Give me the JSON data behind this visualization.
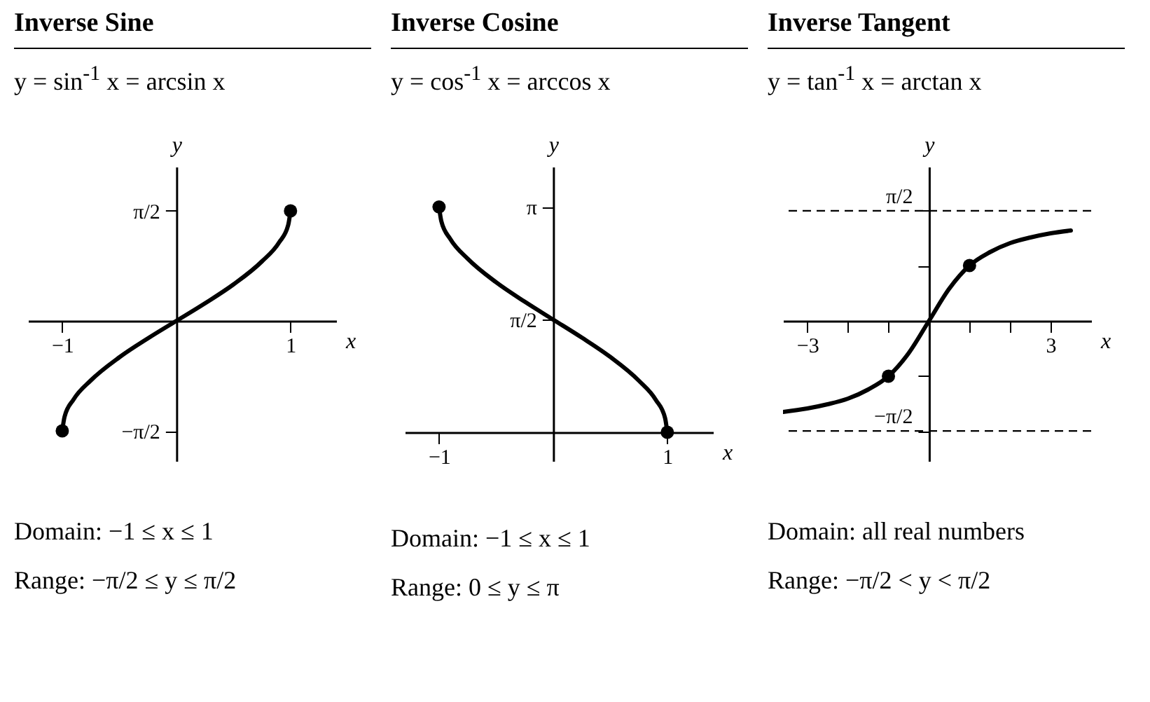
{
  "chart_data": [
    {
      "type": "line",
      "title": "Inverse Sine",
      "subtitle": "y = sin$^{-1}$ x = arcsin x",
      "xlabel": "x",
      "ylabel": "y",
      "xlim": [
        -1.3,
        1.4
      ],
      "ylim": [
        -2,
        2.2
      ],
      "xticks": [
        {
          "value": -1,
          "label": "−1"
        },
        1
      ],
      "yticks": [
        {
          "value": 1.571,
          "label": "π/2"
        },
        {
          "value": -1.571,
          "label": "−π/2"
        }
      ],
      "grid": false,
      "series": [
        {
          "color": "#000000",
          "x": [
            -1,
            -0.98,
            -0.9,
            -0.75,
            -0.5,
            -0.25,
            0,
            0.25,
            0.5,
            0.75,
            0.9,
            0.98,
            1
          ],
          "values": [
            -1.57,
            -1.37,
            -1.12,
            -0.85,
            -0.52,
            -0.25,
            0,
            0.25,
            0.52,
            0.85,
            1.12,
            1.37,
            1.57
          ]
        },
        {
          "type": "scatter",
          "marker": "circle",
          "color": "#000000",
          "x": [
            -1,
            1
          ],
          "values": [
            -1.57,
            1.57
          ]
        }
      ],
      "annotations": [
        "Domain: −1 ≤ x ≤ 1",
        "Range: −π/2 ≤ y ≤ π/2"
      ]
    },
    {
      "type": "line",
      "title": "Inverse Cosine",
      "subtitle": "y = cos$^{-1}$ x = arccos x",
      "xlabel": "x",
      "ylabel": "y",
      "xlim": [
        -1.3,
        1.4
      ],
      "ylim": [
        -0.4,
        3.7
      ],
      "xticks": [
        {
          "value": -1,
          "label": "−1"
        },
        1
      ],
      "yticks": [
        {
          "value": 1.571,
          "label": "π/2"
        },
        {
          "value": 3.142,
          "label": "π"
        }
      ],
      "grid": false,
      "series": [
        {
          "color": "#000000",
          "x": [
            -1,
            -0.98,
            -0.9,
            -0.75,
            -0.5,
            -0.25,
            0,
            0.25,
            0.5,
            0.75,
            0.9,
            0.98,
            1
          ],
          "values": [
            3.14,
            2.94,
            2.69,
            2.42,
            2.09,
            1.82,
            1.57,
            1.32,
            1.05,
            0.72,
            0.45,
            0.2,
            0
          ]
        },
        {
          "type": "scatter",
          "marker": "circle",
          "color": "#000000",
          "x": [
            -1,
            1
          ],
          "values": [
            3.14,
            0
          ]
        }
      ],
      "annotations": [
        "Domain: −1 ≤ x ≤ 1",
        "Range: 0 ≤ y ≤ π"
      ]
    },
    {
      "type": "line",
      "title": "Inverse Tangent",
      "subtitle": "y = tan$^{-1}$ x = arctan x",
      "xlabel": "x",
      "ylabel": "y",
      "xlim": [
        -3.6,
        4
      ],
      "ylim": [
        -2,
        2.2
      ],
      "xticks": [
        {
          "value": -3,
          "label": "−3"
        },
        {
          "value": -2,
          "label": null
        },
        {
          "value": -1,
          "label": null
        },
        {
          "value": 1,
          "label": null
        },
        {
          "value": 2,
          "label": null
        },
        {
          "value": 3,
          "label": "3"
        }
      ],
      "yticks": [
        {
          "value": 1.571,
          "label": "π/2"
        },
        {
          "value": 0.785,
          "label": null
        },
        {
          "value": -0.785,
          "label": null
        },
        {
          "value": -1.571,
          "label": "−π/2"
        }
      ],
      "grid": false,
      "series": [
        {
          "color": "#000000",
          "x": [
            -3.6,
            -3,
            -2.5,
            -2,
            -1.5,
            -1,
            -0.5,
            0,
            0.5,
            1,
            1.5,
            2,
            2.5,
            3,
            3.5
          ],
          "values": [
            -1.3,
            -1.25,
            -1.19,
            -1.11,
            -0.98,
            -0.79,
            -0.46,
            0,
            0.46,
            0.79,
            0.98,
            1.11,
            1.19,
            1.25,
            1.29
          ]
        },
        {
          "type": "scatter",
          "marker": "circle",
          "color": "#000000",
          "x": [
            -1,
            1
          ],
          "values": [
            -0.79,
            0.79
          ]
        }
      ],
      "ref_lines": [
        {
          "axis": "y",
          "value": 1.571,
          "line_style": "dashed",
          "color": "#000000"
        },
        {
          "axis": "y",
          "value": -1.571,
          "line_style": "dashed",
          "color": "#000000"
        }
      ],
      "annotations": [
        "Domain: all real numbers",
        "Range: −π/2 < y < π/2"
      ]
    }
  ]
}
